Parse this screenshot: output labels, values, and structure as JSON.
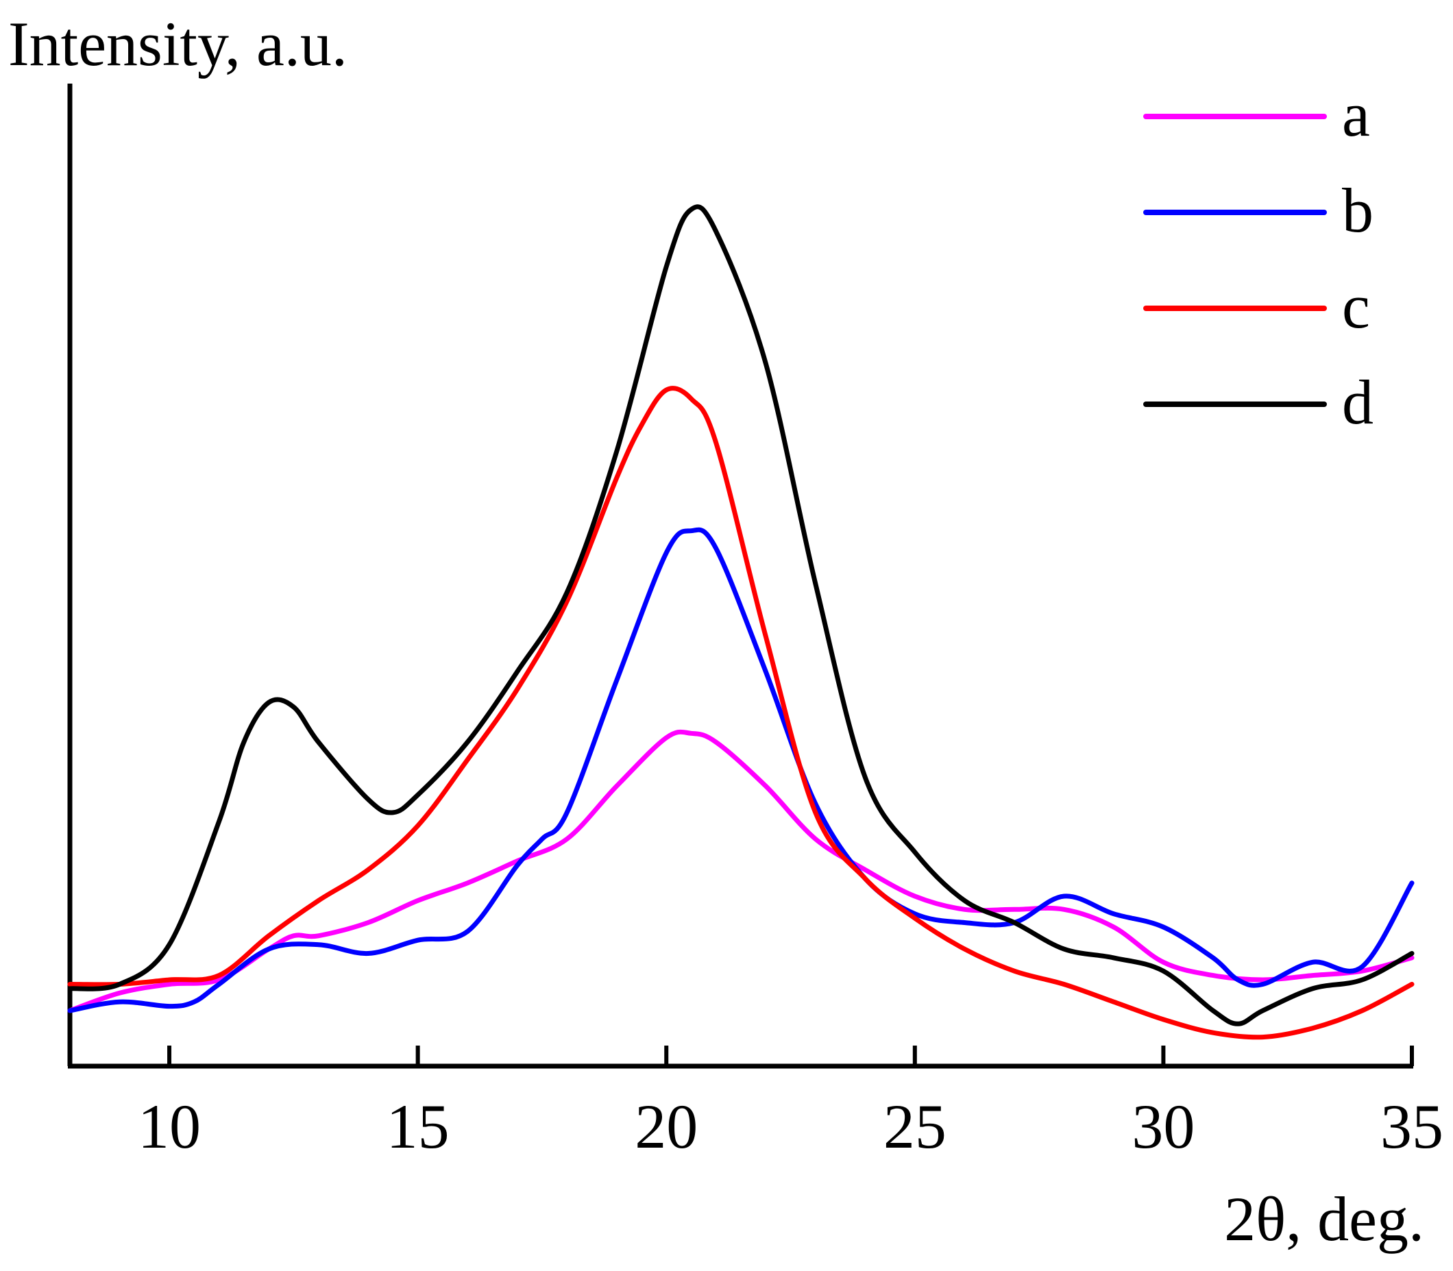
{
  "chart_data": {
    "type": "line",
    "title": "",
    "xlabel": "2θ, deg.",
    "ylabel": "Intensity, a.u.",
    "xlim": [
      8,
      35
    ],
    "ylim": [
      0,
      100
    ],
    "xticks": [
      10,
      15,
      20,
      25,
      30,
      35
    ],
    "xtick_labels": [
      "10",
      "15",
      "20",
      "25",
      "30",
      "35"
    ],
    "legend_position": "top-right",
    "series": [
      {
        "name": "a",
        "color": "#ff00ff",
        "x": [
          8,
          9,
          10,
          11,
          12,
          12.5,
          13,
          14,
          15,
          16,
          17,
          18,
          19,
          20,
          20.5,
          21,
          22,
          23,
          24,
          25,
          26,
          27,
          28,
          29,
          30,
          31,
          32,
          33,
          34,
          35
        ],
        "y": [
          3.5,
          5.5,
          6.5,
          7,
          10.5,
          12,
          12,
          13.5,
          16,
          18,
          20.5,
          23,
          29,
          34.5,
          35,
          34,
          29,
          23,
          19.5,
          16.5,
          15,
          15,
          15,
          13,
          9,
          7.5,
          7,
          7.5,
          8,
          9.5
        ]
      },
      {
        "name": "b",
        "color": "#0000ff",
        "x": [
          8,
          9,
          10,
          10.5,
          11,
          12,
          13,
          14,
          15,
          16,
          17,
          17.5,
          18,
          19,
          20,
          20.5,
          21,
          22,
          23,
          24,
          25,
          26,
          27,
          28,
          29,
          30,
          31,
          31.5,
          32,
          33,
          34,
          35
        ],
        "y": [
          3.5,
          4.5,
          4,
          4.5,
          6.5,
          10.5,
          11,
          10,
          11.5,
          12.5,
          20,
          23,
          26,
          41,
          55.5,
          58,
          56,
          42,
          27,
          18.5,
          14.5,
          13.5,
          13.5,
          16.5,
          14.5,
          13,
          9.5,
          7,
          6.5,
          9,
          8.5,
          18
        ]
      },
      {
        "name": "c",
        "color": "#ff0000",
        "x": [
          8,
          9,
          10,
          11,
          12,
          13,
          14,
          15,
          16,
          17,
          18,
          19,
          19.5,
          20,
          20.5,
          21,
          22,
          23,
          24,
          25,
          26,
          27,
          28,
          29,
          30,
          31,
          32,
          33,
          34,
          35
        ],
        "y": [
          6.5,
          6.5,
          7,
          7.5,
          12,
          16,
          19.5,
          24.5,
          32,
          40,
          50,
          64,
          70,
          74,
          73,
          68,
          46,
          26,
          18.5,
          14,
          10.5,
          8,
          6.5,
          4.5,
          2.5,
          1,
          0.5,
          1.5,
          3.5,
          6.5
        ]
      },
      {
        "name": "d",
        "color": "#000000",
        "x": [
          8,
          9,
          10,
          11,
          11.5,
          12,
          12.5,
          13,
          14,
          14.5,
          15,
          16,
          17,
          18,
          19,
          20,
          20.5,
          21,
          22,
          23,
          24,
          25,
          26,
          27,
          28,
          29,
          30,
          31,
          31.5,
          32,
          33,
          34,
          35
        ],
        "y": [
          6,
          6.5,
          11,
          25,
          34,
          38.5,
          38,
          34,
          27.5,
          26,
          28,
          34,
          42,
          51,
          67,
          88,
          94.5,
          92,
          77,
          52,
          30,
          21.5,
          16,
          13.5,
          10.5,
          9.5,
          8,
          3.5,
          2,
          3.5,
          6,
          7,
          10
        ]
      }
    ]
  }
}
